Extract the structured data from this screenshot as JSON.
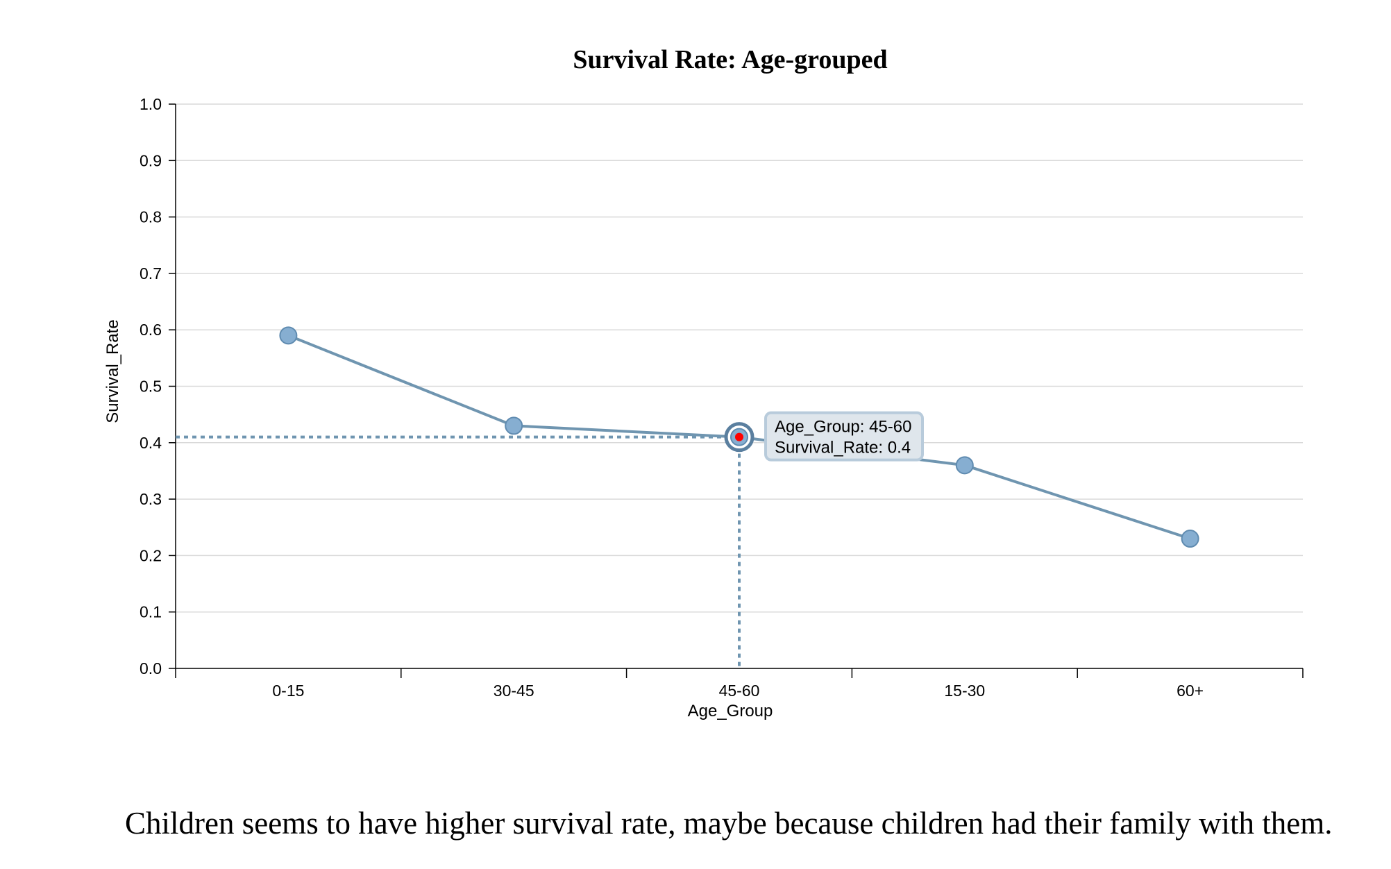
{
  "chart_data": {
    "type": "line",
    "title": "Survival Rate: Age-grouped",
    "xlabel": "Age_Group",
    "ylabel": "Survival_Rate",
    "categories": [
      "0-15",
      "30-45",
      "45-60",
      "15-30",
      "60+"
    ],
    "values": [
      0.59,
      0.43,
      0.41,
      0.36,
      0.23
    ],
    "ylim": [
      0,
      1.0
    ],
    "yticks": [
      "0.0",
      "0.1",
      "0.2",
      "0.3",
      "0.4",
      "0.5",
      "0.6",
      "0.7",
      "0.8",
      "0.9",
      "1.0"
    ],
    "grid": true,
    "highlight": {
      "category": "45-60",
      "value": 0.41,
      "tooltip_lines": [
        "Age_Group: 45-60",
        "Survival_Rate: 0.4"
      ]
    }
  },
  "caption": "Children seems to have higher survival rate, maybe because children had their family with them.",
  "colors": {
    "line": "#6f95b0",
    "marker_fill": "#86aed1",
    "marker_stroke": "#5f8bb0",
    "highlight_dot": "#ff0000",
    "gridline": "#d9d9d9",
    "tooltip_fill": "#dfe6ec",
    "tooltip_stroke": "#b8cbdb"
  }
}
